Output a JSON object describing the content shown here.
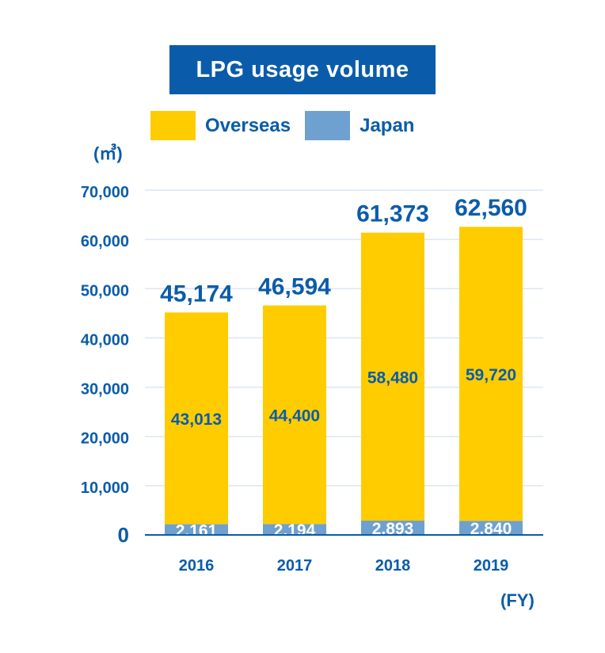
{
  "colors": {
    "overseas": "#ffcc00",
    "japan": "#6ea0d0",
    "accent": "#0a5cab",
    "grid": "#dde6f2"
  },
  "chart_data": {
    "type": "bar",
    "stacked": true,
    "title": "LPG usage volume",
    "unit_label": "(㎥)",
    "x_unit_label": "(FY)",
    "categories": [
      "2016",
      "2017",
      "2018",
      "2019"
    ],
    "series": [
      {
        "name": "Japan",
        "values": [
          2161,
          2194,
          2893,
          2840
        ],
        "value_labels": [
          "2,161",
          "2,194",
          "2,893",
          "2,840"
        ]
      },
      {
        "name": "Overseas",
        "values": [
          43013,
          44400,
          58480,
          59720
        ],
        "value_labels": [
          "43,013",
          "44,400",
          "58,480",
          "59,720"
        ]
      }
    ],
    "totals": [
      45174,
      46594,
      61373,
      62560
    ],
    "total_labels": [
      "45,174",
      "46,594",
      "61,373",
      "62,560"
    ],
    "ylim": [
      0,
      70000
    ],
    "yticks": [
      0,
      10000,
      20000,
      30000,
      40000,
      50000,
      60000,
      70000
    ],
    "ytick_labels": [
      "0",
      "10,000",
      "20,000",
      "30,000",
      "40,000",
      "50,000",
      "60,000",
      "70,000"
    ],
    "grid": true,
    "legend_position": "top"
  }
}
